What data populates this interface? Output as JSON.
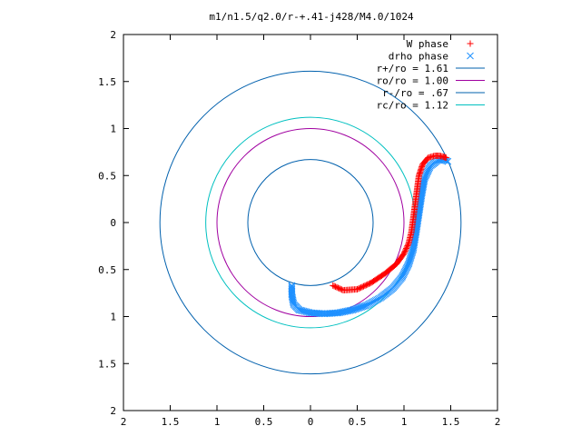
{
  "chart_data": {
    "type": "scatter",
    "title": "m1/n1.5/q2.0/r-+.41-j428/M4.0/1024",
    "xlabel": "",
    "ylabel": "",
    "xlim": [
      -2,
      2
    ],
    "ylim": [
      -2,
      2
    ],
    "xticks": [
      "2",
      "1.5",
      "1",
      "0.5",
      "0",
      "0.5",
      "1",
      "1.5",
      "2"
    ],
    "yticks": [
      "2",
      "1.5",
      "1",
      "0.5",
      "0",
      "0.5",
      "1",
      "1.5",
      "2"
    ],
    "grid": false,
    "legend_position": "top-right",
    "series": [
      {
        "name": "W phase",
        "kind": "points",
        "marker": "plus",
        "color": "#ff0000",
        "points": [
          [
            0.24,
            -0.67
          ],
          [
            0.35,
            -0.72
          ],
          [
            0.5,
            -0.71
          ],
          [
            0.65,
            -0.64
          ],
          [
            0.8,
            -0.54
          ],
          [
            0.92,
            -0.44
          ],
          [
            1.0,
            -0.33
          ],
          [
            1.05,
            -0.22
          ],
          [
            1.08,
            -0.1
          ],
          [
            1.1,
            0.05
          ],
          [
            1.12,
            0.2
          ],
          [
            1.14,
            0.35
          ],
          [
            1.16,
            0.5
          ],
          [
            1.2,
            0.62
          ],
          [
            1.26,
            0.69
          ],
          [
            1.33,
            0.71
          ],
          [
            1.38,
            0.71
          ],
          [
            1.42,
            0.7
          ],
          [
            1.45,
            0.69
          ]
        ]
      },
      {
        "name": "drho phase",
        "kind": "points",
        "marker": "cross",
        "color": "#1e90ff",
        "points": [
          [
            -0.2,
            -0.67
          ],
          [
            -0.2,
            -0.77
          ],
          [
            -0.18,
            -0.87
          ],
          [
            -0.12,
            -0.93
          ],
          [
            0.0,
            -0.96
          ],
          [
            0.15,
            -0.97
          ],
          [
            0.3,
            -0.96
          ],
          [
            0.45,
            -0.93
          ],
          [
            0.6,
            -0.88
          ],
          [
            0.75,
            -0.8
          ],
          [
            0.88,
            -0.7
          ],
          [
            0.98,
            -0.58
          ],
          [
            1.05,
            -0.44
          ],
          [
            1.1,
            -0.28
          ],
          [
            1.13,
            -0.1
          ],
          [
            1.16,
            0.1
          ],
          [
            1.19,
            0.3
          ],
          [
            1.22,
            0.47
          ],
          [
            1.28,
            0.6
          ],
          [
            1.36,
            0.66
          ],
          [
            1.42,
            0.67
          ],
          [
            1.47,
            0.65
          ]
        ]
      },
      {
        "name": "r+/ro = 1.61",
        "kind": "circle",
        "radius": 1.61,
        "color": "#0060ad"
      },
      {
        "name": "ro/ro = 1.00",
        "kind": "circle",
        "radius": 1.0,
        "color": "#a000a0"
      },
      {
        "name": "r-/ro = .67",
        "kind": "circle",
        "radius": 0.67,
        "color": "#0060ad"
      },
      {
        "name": "rc/ro = 1.12",
        "kind": "circle",
        "radius": 1.12,
        "color": "#00c0c0"
      }
    ]
  }
}
